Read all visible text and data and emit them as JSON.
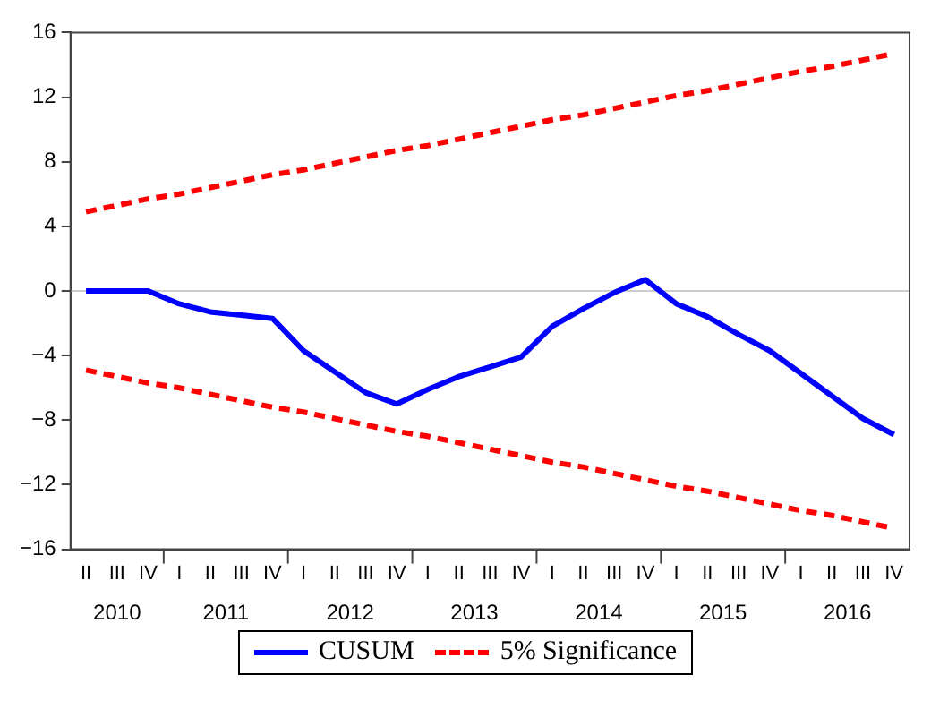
{
  "chart_data": {
    "type": "line",
    "categories": [
      "II",
      "III",
      "IV",
      "I",
      "II",
      "III",
      "IV",
      "I",
      "II",
      "III",
      "IV",
      "I",
      "II",
      "III",
      "IV",
      "I",
      "II",
      "III",
      "IV",
      "I",
      "II",
      "III",
      "IV",
      "I",
      "II",
      "III",
      "IV"
    ],
    "series": [
      {
        "name": "CUSUM",
        "color": "#0000ff",
        "line_style": "solid",
        "values": [
          0,
          0,
          0,
          -0.8,
          -1.3,
          -1.5,
          -1.7,
          -3.7,
          -5.0,
          -6.3,
          -7.0,
          -6.1,
          -5.3,
          -4.7,
          -4.1,
          -2.2,
          -1.1,
          -0.1,
          0.7,
          -0.8,
          -1.6,
          -2.7,
          -3.7,
          -5.1,
          -6.5,
          -7.9,
          -8.9
        ]
      },
      {
        "name": "5% Significance",
        "color": "#ff0000",
        "line_style": "dashed",
        "values": [
          4.9,
          5.3,
          5.7,
          6.0,
          6.4,
          6.8,
          7.2,
          7.5,
          7.9,
          8.3,
          8.7,
          9.0,
          9.4,
          9.8,
          10.2,
          10.6,
          10.9,
          11.3,
          11.7,
          12.1,
          12.4,
          12.8,
          13.2,
          13.6,
          13.9,
          14.3,
          14.7
        ]
      },
      {
        "color": "#ff0000",
        "line_style": "dashed",
        "values": [
          -4.9,
          -5.3,
          -5.7,
          -6.0,
          -6.4,
          -6.8,
          -7.2,
          -7.5,
          -7.9,
          -8.3,
          -8.7,
          -9.0,
          -9.4,
          -9.8,
          -10.2,
          -10.6,
          -10.9,
          -11.3,
          -11.7,
          -12.1,
          -12.4,
          -12.8,
          -13.2,
          -13.6,
          -13.9,
          -14.3,
          -14.7
        ]
      }
    ],
    "ylim": [
      -16,
      16
    ],
    "yticks": [
      -16,
      -12,
      -8,
      -4,
      0,
      4,
      8,
      12,
      16
    ],
    "ref_lines": [
      {
        "axis": "y",
        "value": 0,
        "color": "#cccccc"
      }
    ],
    "annotations": [
      "2010",
      "2011",
      "2012",
      "2013",
      "2014",
      "2015",
      "2016"
    ],
    "grid": false,
    "legend": "bottom",
    "marker": "none"
  }
}
